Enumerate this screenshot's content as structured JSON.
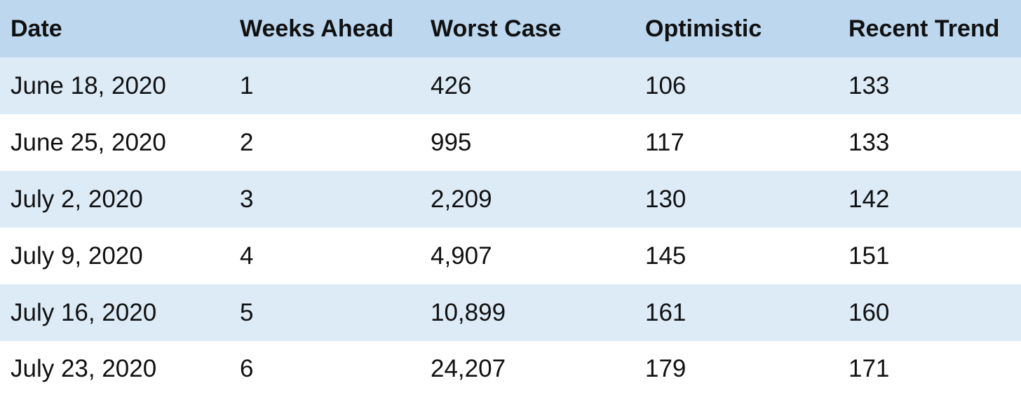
{
  "table": {
    "headers": [
      "Date",
      "Weeks Ahead",
      "Worst Case",
      "Optimistic",
      "Recent Trend"
    ],
    "rows": [
      [
        "June 18, 2020",
        "1",
        "426",
        "106",
        "133"
      ],
      [
        "June 25, 2020",
        "2",
        "995",
        "117",
        "133"
      ],
      [
        "July 2, 2020",
        "3",
        "2,209",
        "130",
        "142"
      ],
      [
        "July 9, 2020",
        "4",
        "4,907",
        "145",
        "151"
      ],
      [
        "July 16, 2020",
        "5",
        "10,899",
        "161",
        "160"
      ],
      [
        "July 23, 2020",
        "6",
        "24,207",
        "179",
        "171"
      ]
    ]
  },
  "colors": {
    "header_bg": "#bdd7ee",
    "shaded_row_bg": "#ddebf7",
    "plain_row_bg": "#ffffff",
    "text": "#111111"
  }
}
